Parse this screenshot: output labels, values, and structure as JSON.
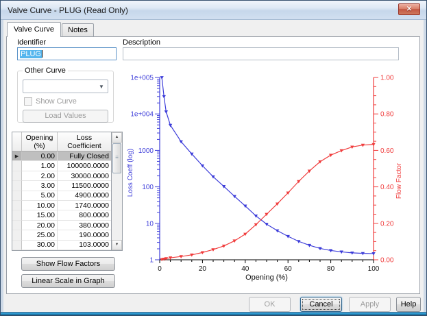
{
  "window": {
    "title": "Valve Curve - PLUG (Read Only)",
    "close_glyph": "✕"
  },
  "tabs": {
    "valve_curve": "Valve Curve",
    "notes": "Notes"
  },
  "form": {
    "identifier_label": "Identifier",
    "identifier_value": "PLUG",
    "description_label": "Description",
    "description_value": ""
  },
  "other_curve": {
    "group_label": "Other Curve",
    "dropdown_value": "",
    "dropdown_arrow": "▼",
    "show_curve_label": "Show Curve",
    "load_values_label": "Load Values"
  },
  "table": {
    "columns": [
      [
        "Opening",
        "(%)"
      ],
      [
        "Loss",
        "Coefficient"
      ]
    ],
    "rows": [
      [
        "0.00",
        "Fully Closed"
      ],
      [
        "1.00",
        "100000.0000"
      ],
      [
        "2.00",
        "30000.0000"
      ],
      [
        "3.00",
        "11500.0000"
      ],
      [
        "5.00",
        "4900.0000"
      ],
      [
        "10.00",
        "1740.0000"
      ],
      [
        "15.00",
        "800.0000"
      ],
      [
        "20.00",
        "380.0000"
      ],
      [
        "25.00",
        "190.0000"
      ],
      [
        "30.00",
        "103.0000"
      ]
    ],
    "selected_row_index": 0,
    "selected_marker": "▶",
    "scroll_up_glyph": "▲",
    "scroll_down_glyph": "▼",
    "thumb_grip": "≡"
  },
  "side_buttons": {
    "show_flow_factors": "Show Flow Factors",
    "linear_scale": "Linear Scale in Graph"
  },
  "dialog_buttons": [
    {
      "name": "ok",
      "label": "OK",
      "enabled": false,
      "focused": false
    },
    {
      "name": "cancel",
      "label": "Cancel",
      "enabled": true,
      "focused": true
    },
    {
      "name": "apply",
      "label": "Apply",
      "enabled": false,
      "focused": false
    },
    {
      "name": "help",
      "label": "Help",
      "enabled": true,
      "focused": false
    }
  ],
  "chart_data": {
    "type": "line",
    "xlabel": "Opening (%)",
    "xlim": [
      0,
      100
    ],
    "x_major_ticks": [
      0,
      20,
      40,
      60,
      80,
      100
    ],
    "x_minor_step": 5,
    "grid": false,
    "legend": "none",
    "left_axis": {
      "label": "Loss Coeff (log)",
      "scale": "log",
      "lim": [
        1,
        100000
      ],
      "tick_labels": [
        "1e+005",
        "1e+004",
        "1000",
        "100",
        "10",
        "1"
      ],
      "color": "#3c3cd9"
    },
    "right_axis": {
      "label": "Flow Factor",
      "scale": "linear",
      "lim": [
        0,
        1
      ],
      "tick_labels": [
        "1.00",
        "0.80",
        "0.60",
        "0.40",
        "0.20",
        "0.00"
      ],
      "minor_step": 0.05,
      "color": "#f03c3c"
    },
    "x_axis_color": "#000000",
    "series": [
      {
        "name": "Loss Coefficient",
        "axis": "left",
        "color": "#3c3cd9",
        "marker": "triangle",
        "x": [
          1,
          2,
          3,
          5,
          10,
          15,
          20,
          25,
          30,
          35,
          40,
          45,
          50,
          55,
          60,
          65,
          70,
          75,
          80,
          85,
          90,
          95,
          100
        ],
        "y": [
          100000,
          30000,
          11500,
          4900,
          1740,
          800,
          380,
          190,
          103,
          55,
          30,
          16,
          9.5,
          6.3,
          4.4,
          3.2,
          2.5,
          2.05,
          1.8,
          1.65,
          1.55,
          1.5,
          1.48
        ]
      },
      {
        "name": "Flow Factor",
        "axis": "right",
        "color": "#f03c3c",
        "marker": "triangle",
        "x": [
          1,
          2,
          3,
          5,
          10,
          15,
          20,
          25,
          30,
          35,
          40,
          45,
          50,
          55,
          60,
          65,
          70,
          75,
          80,
          85,
          90,
          95,
          100
        ],
        "y": [
          0.002,
          0.004,
          0.007,
          0.011,
          0.018,
          0.027,
          0.04,
          0.056,
          0.076,
          0.104,
          0.141,
          0.193,
          0.25,
          0.307,
          0.367,
          0.43,
          0.487,
          0.538,
          0.574,
          0.599,
          0.619,
          0.629,
          0.633
        ]
      }
    ]
  }
}
